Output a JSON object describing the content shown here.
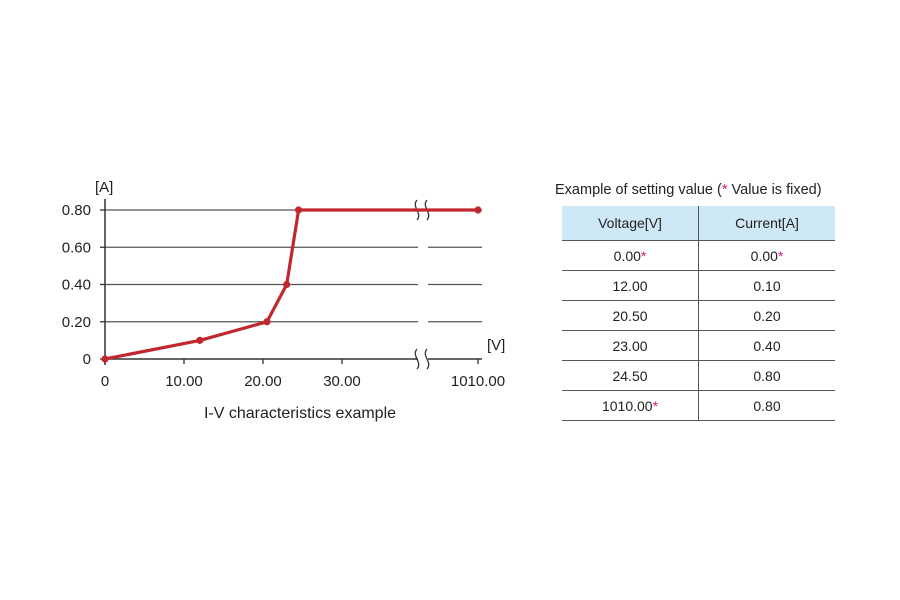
{
  "chart_data": {
    "type": "line",
    "title": "I-V characteristics example",
    "xlabel": "[V]",
    "ylabel": "[A]",
    "x_ticks": [
      "0",
      "10.00",
      "20.00",
      "30.00",
      "1010.00"
    ],
    "y_ticks": [
      "0",
      "0.20",
      "0.40",
      "0.60",
      "0.80"
    ],
    "ylim": [
      0,
      0.8
    ],
    "grid": true,
    "axis_break": "x-axis broken between 30.00 and 1010.00",
    "series": [
      {
        "color": "#c1272d",
        "points": [
          {
            "x": 0.0,
            "y": 0.0
          },
          {
            "x": 12.0,
            "y": 0.1
          },
          {
            "x": 20.5,
            "y": 0.2
          },
          {
            "x": 23.0,
            "y": 0.4
          },
          {
            "x": 24.5,
            "y": 0.8
          },
          {
            "x": 1010.0,
            "y": 0.8
          }
        ]
      }
    ]
  },
  "table": {
    "title_prefix": "Example of setting value (",
    "title_star": "*",
    "title_suffix": " Value is fixed)",
    "headers": [
      "Voltage[V]",
      "Current[A]"
    ],
    "rows": [
      {
        "voltage": "0.00",
        "voltage_fixed": true,
        "current": "0.00",
        "current_fixed": true
      },
      {
        "voltage": "12.00",
        "voltage_fixed": false,
        "current": "0.10",
        "current_fixed": false
      },
      {
        "voltage": "20.50",
        "voltage_fixed": false,
        "current": "0.20",
        "current_fixed": false
      },
      {
        "voltage": "23.00",
        "voltage_fixed": false,
        "current": "0.40",
        "current_fixed": false
      },
      {
        "voltage": "24.50",
        "voltage_fixed": false,
        "current": "0.80",
        "current_fixed": false
      },
      {
        "voltage": "1010.00",
        "voltage_fixed": true,
        "current": "0.80",
        "current_fixed": false
      }
    ],
    "fixed_marker": "*"
  },
  "colors": {
    "line": "#c1272d",
    "fixed_marker": "#e2177a",
    "table_header_bg": "#cfe8f5"
  }
}
